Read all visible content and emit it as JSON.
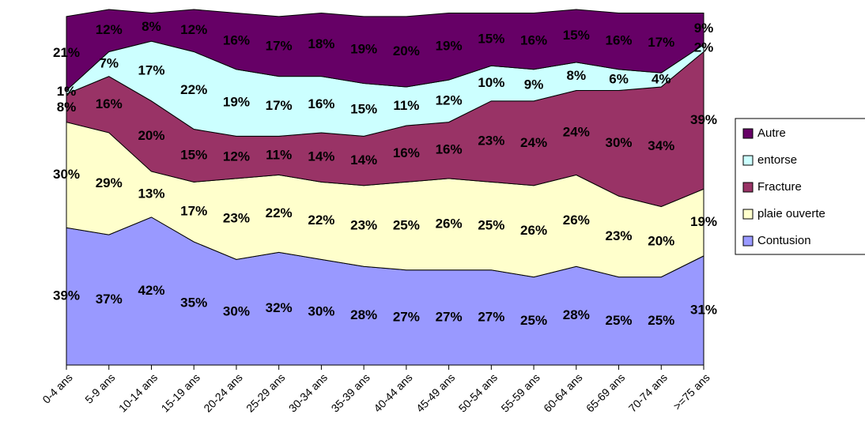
{
  "chart_data": {
    "type": "stacked_area",
    "categories": [
      "0-4 ans",
      "5-9 ans",
      "10-14 ans",
      "15-19 ans",
      "20-24 ans",
      "25-29 ans",
      "30-34 ans",
      "35-39 ans",
      "40-44 ans",
      "45-49 ans",
      "50-54 ans",
      "55-59 ans",
      "60-64 ans",
      "65-69 ans",
      "70-74 ans",
      ">=75 ans"
    ],
    "series": [
      {
        "name": "Contusion",
        "color": "#9999ff",
        "values": [
          39,
          37,
          42,
          35,
          30,
          32,
          30,
          28,
          27,
          27,
          27,
          25,
          28,
          25,
          25,
          31
        ],
        "value_labels": [
          "39%",
          "37%",
          "42%",
          "35%",
          "30%",
          "32%",
          "30%",
          "28%",
          "27%",
          "27%",
          "27%",
          "25%",
          "28%",
          "25%",
          "25%",
          "31%"
        ]
      },
      {
        "name": "plaie ouverte",
        "color": "#ffffcc",
        "values": [
          30,
          29,
          13,
          17,
          23,
          22,
          22,
          23,
          25,
          26,
          25,
          26,
          26,
          23,
          20,
          19
        ],
        "value_labels": [
          "30%",
          "29%",
          "13%",
          "17%",
          "23%",
          "22%",
          "22%",
          "23%",
          "25%",
          "26%",
          "25%",
          "26%",
          "26%",
          "23%",
          "20%",
          "19%"
        ]
      },
      {
        "name": "Fracture",
        "color": "#993366",
        "values": [
          8,
          16,
          20,
          15,
          12,
          11,
          14,
          14,
          16,
          16,
          23,
          24,
          24,
          30,
          34,
          39
        ],
        "value_labels": [
          "8%",
          "16%",
          "20%",
          "15%",
          "12%",
          "11%",
          "14%",
          "14%",
          "16%",
          "16%",
          "23%",
          "24%",
          "24%",
          "30%",
          "34%",
          "39%"
        ]
      },
      {
        "name": "entorse",
        "color": "#ccffff",
        "values": [
          1,
          7,
          17,
          22,
          19,
          17,
          16,
          15,
          11,
          12,
          10,
          9,
          8,
          6,
          4,
          2
        ],
        "value_labels": [
          "1%",
          "7%",
          "17%",
          "22%",
          "19%",
          "17%",
          "16%",
          "15%",
          "11%",
          "12%",
          "10%",
          "9%",
          "8%",
          "6%",
          "4%",
          "2%"
        ]
      },
      {
        "name": "Autre",
        "color": "#660066",
        "values": [
          21,
          12,
          8,
          12,
          16,
          17,
          18,
          19,
          20,
          19,
          15,
          16,
          15,
          16,
          17,
          9
        ],
        "value_labels": [
          "21%",
          "12%",
          "8%",
          "12%",
          "16%",
          "17%",
          "18%",
          "19%",
          "20%",
          "19%",
          "15%",
          "16%",
          "15%",
          "16%",
          "17%",
          "9%"
        ]
      }
    ]
  }
}
